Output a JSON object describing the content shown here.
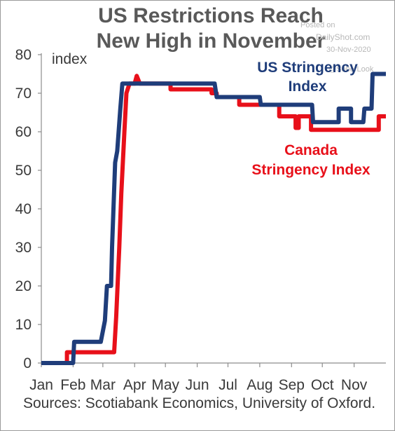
{
  "title_lines": [
    "US Restrictions Reach",
    "New High in November"
  ],
  "watermark": [
    "Posted on",
    "DailyShot.com",
    "30-Nov-2020",
    "@SoberLook"
  ],
  "source": "Sources: Scotiabank Economics, University of Oxford.",
  "colors": {
    "us": "#1f3d7a",
    "canada": "#e8101a",
    "text": "#3a3a3a",
    "title": "#595959"
  },
  "chart_data": {
    "type": "line",
    "title": "US Restrictions Reach New High in November",
    "ylabel": "index",
    "ylim": [
      0,
      80
    ],
    "yticks": [
      0,
      10,
      20,
      30,
      40,
      50,
      60,
      70,
      80
    ],
    "xlim": [
      "2020-01-01",
      "2020-12-02"
    ],
    "xticks": [
      {
        "label": "Jan",
        "date": "2020-01-01"
      },
      {
        "label": "Feb",
        "date": "2020-02-01"
      },
      {
        "label": "Mar",
        "date": "2020-03-01"
      },
      {
        "label": "Apr",
        "date": "2020-04-01"
      },
      {
        "label": "May",
        "date": "2020-05-01"
      },
      {
        "label": "Jun",
        "date": "2020-06-01"
      },
      {
        "label": "Jul",
        "date": "2020-07-01"
      },
      {
        "label": "Aug",
        "date": "2020-08-01"
      },
      {
        "label": "Sep",
        "date": "2020-09-01"
      },
      {
        "label": "Oct",
        "date": "2020-10-01"
      },
      {
        "label": "Nov",
        "date": "2020-11-01"
      }
    ],
    "grid": false,
    "series": [
      {
        "name": "Canada Stringency Index",
        "label_lines": [
          "Canada",
          "Stringency Index"
        ],
        "color_key": "canada",
        "points": [
          [
            "2020-01-01",
            0
          ],
          [
            "2020-01-26",
            0
          ],
          [
            "2020-01-26",
            2.8
          ],
          [
            "2020-03-12",
            2.8
          ],
          [
            "2020-03-14",
            12
          ],
          [
            "2020-03-17",
            30
          ],
          [
            "2020-03-19",
            44
          ],
          [
            "2020-03-22",
            60
          ],
          [
            "2020-03-24",
            70
          ],
          [
            "2020-03-27",
            72.5
          ],
          [
            "2020-04-01",
            72.5
          ],
          [
            "2020-04-03",
            74.5
          ],
          [
            "2020-04-06",
            72.5
          ],
          [
            "2020-05-06",
            72.5
          ],
          [
            "2020-05-06",
            71
          ],
          [
            "2020-06-15",
            71
          ],
          [
            "2020-06-15",
            70
          ],
          [
            "2020-06-20",
            70
          ],
          [
            "2020-06-20",
            69
          ],
          [
            "2020-07-12",
            69
          ],
          [
            "2020-07-12",
            67
          ],
          [
            "2020-08-20",
            67
          ],
          [
            "2020-08-20",
            64
          ],
          [
            "2020-09-05",
            64
          ],
          [
            "2020-09-05",
            61
          ],
          [
            "2020-09-08",
            61
          ],
          [
            "2020-09-08",
            64
          ],
          [
            "2020-09-20",
            64
          ],
          [
            "2020-09-20",
            60.5
          ],
          [
            "2020-11-25",
            60.5
          ],
          [
            "2020-11-25",
            64
          ],
          [
            "2020-12-02",
            64
          ]
        ]
      },
      {
        "name": "US Stringency Index",
        "label_lines": [
          "US Stringency",
          "Index"
        ],
        "color_key": "us",
        "points": [
          [
            "2020-01-01",
            0
          ],
          [
            "2020-02-01",
            0
          ],
          [
            "2020-02-02",
            5.5
          ],
          [
            "2020-02-28",
            5.5
          ],
          [
            "2020-03-03",
            11
          ],
          [
            "2020-03-05",
            20
          ],
          [
            "2020-03-09",
            20
          ],
          [
            "2020-03-10",
            30
          ],
          [
            "2020-03-13",
            52
          ],
          [
            "2020-03-15",
            55
          ],
          [
            "2020-03-18",
            66
          ],
          [
            "2020-03-20",
            72.5
          ],
          [
            "2020-06-18",
            72.5
          ],
          [
            "2020-06-20",
            69
          ],
          [
            "2020-08-01",
            69
          ],
          [
            "2020-08-02",
            67
          ],
          [
            "2020-09-21",
            67
          ],
          [
            "2020-09-22",
            62.5
          ],
          [
            "2020-10-17",
            62.5
          ],
          [
            "2020-10-17",
            66
          ],
          [
            "2020-10-29",
            66
          ],
          [
            "2020-10-29",
            62.5
          ],
          [
            "2020-11-10",
            62.5
          ],
          [
            "2020-11-11",
            66
          ],
          [
            "2020-11-18",
            66
          ],
          [
            "2020-11-19",
            75
          ],
          [
            "2020-12-02",
            75
          ]
        ]
      }
    ]
  }
}
